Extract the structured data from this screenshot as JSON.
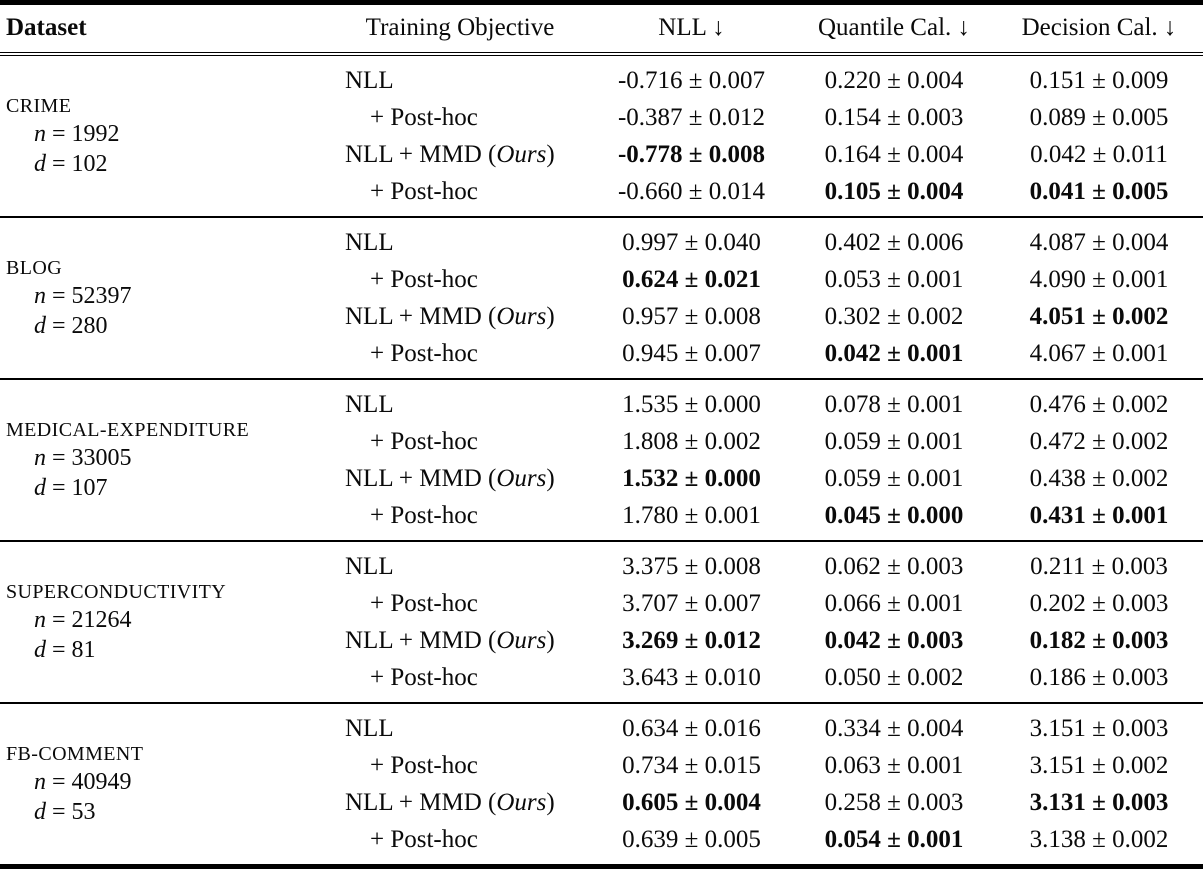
{
  "table": {
    "columns": [
      "Dataset",
      "Training Objective",
      "NLL ↓",
      "Quantile Cal. ↓",
      "Decision Cal. ↓"
    ],
    "groups": [
      {
        "name": "CRIME",
        "n_var": "n",
        "n_val": "= 1992",
        "d_var": "d",
        "d_val": "= 102",
        "rows": [
          {
            "obj_pre": "NLL",
            "obj_em": "",
            "obj_post": "",
            "indent": false,
            "nll": "-0.716 ± 0.007",
            "nll_bold": false,
            "qcal": "0.220 ± 0.004",
            "qcal_bold": false,
            "dcal": "0.151 ± 0.009",
            "dcal_bold": false
          },
          {
            "obj_pre": "+ Post-hoc",
            "obj_em": "",
            "obj_post": "",
            "indent": true,
            "nll": "-0.387 ± 0.012",
            "nll_bold": false,
            "qcal": "0.154 ± 0.003",
            "qcal_bold": false,
            "dcal": "0.089 ± 0.005",
            "dcal_bold": false
          },
          {
            "obj_pre": "NLL + MMD (",
            "obj_em": "Ours",
            "obj_post": ")",
            "indent": false,
            "nll": "-0.778 ± 0.008",
            "nll_bold": true,
            "qcal": "0.164 ± 0.004",
            "qcal_bold": false,
            "dcal": "0.042 ± 0.011",
            "dcal_bold": false
          },
          {
            "obj_pre": "+ Post-hoc",
            "obj_em": "",
            "obj_post": "",
            "indent": true,
            "nll": "-0.660 ± 0.014",
            "nll_bold": false,
            "qcal": "0.105 ± 0.004",
            "qcal_bold": true,
            "dcal": "0.041 ± 0.005",
            "dcal_bold": true
          }
        ]
      },
      {
        "name": "BLOG",
        "n_var": "n",
        "n_val": "= 52397",
        "d_var": "d",
        "d_val": "= 280",
        "rows": [
          {
            "obj_pre": "NLL",
            "obj_em": "",
            "obj_post": "",
            "indent": false,
            "nll": "0.997 ± 0.040",
            "nll_bold": false,
            "qcal": "0.402 ± 0.006",
            "qcal_bold": false,
            "dcal": "4.087 ± 0.004",
            "dcal_bold": false
          },
          {
            "obj_pre": "+ Post-hoc",
            "obj_em": "",
            "obj_post": "",
            "indent": true,
            "nll": "0.624 ± 0.021",
            "nll_bold": true,
            "qcal": "0.053 ± 0.001",
            "qcal_bold": false,
            "dcal": "4.090 ± 0.001",
            "dcal_bold": false
          },
          {
            "obj_pre": "NLL + MMD (",
            "obj_em": "Ours",
            "obj_post": ")",
            "indent": false,
            "nll": "0.957 ± 0.008",
            "nll_bold": false,
            "qcal": "0.302 ± 0.002",
            "qcal_bold": false,
            "dcal": "4.051 ± 0.002",
            "dcal_bold": true
          },
          {
            "obj_pre": "+ Post-hoc",
            "obj_em": "",
            "obj_post": "",
            "indent": true,
            "nll": "0.945 ± 0.007",
            "nll_bold": false,
            "qcal": "0.042 ± 0.001",
            "qcal_bold": true,
            "dcal": "4.067 ± 0.001",
            "dcal_bold": false
          }
        ]
      },
      {
        "name": "MEDICAL-EXPENDITURE",
        "n_var": "n",
        "n_val": "= 33005",
        "d_var": "d",
        "d_val": "= 107",
        "rows": [
          {
            "obj_pre": "NLL",
            "obj_em": "",
            "obj_post": "",
            "indent": false,
            "nll": "1.535 ± 0.000",
            "nll_bold": false,
            "qcal": "0.078 ± 0.001",
            "qcal_bold": false,
            "dcal": "0.476 ± 0.002",
            "dcal_bold": false
          },
          {
            "obj_pre": "+ Post-hoc",
            "obj_em": "",
            "obj_post": "",
            "indent": true,
            "nll": "1.808 ± 0.002",
            "nll_bold": false,
            "qcal": "0.059 ± 0.001",
            "qcal_bold": false,
            "dcal": "0.472 ± 0.002",
            "dcal_bold": false
          },
          {
            "obj_pre": "NLL + MMD (",
            "obj_em": "Ours",
            "obj_post": ")",
            "indent": false,
            "nll": "1.532 ± 0.000",
            "nll_bold": true,
            "qcal": "0.059 ± 0.001",
            "qcal_bold": false,
            "dcal": "0.438 ± 0.002",
            "dcal_bold": false
          },
          {
            "obj_pre": "+ Post-hoc",
            "obj_em": "",
            "obj_post": "",
            "indent": true,
            "nll": "1.780 ± 0.001",
            "nll_bold": false,
            "qcal": "0.045 ± 0.000",
            "qcal_bold": true,
            "dcal": "0.431 ± 0.001",
            "dcal_bold": true
          }
        ]
      },
      {
        "name": "SUPERCONDUCTIVITY",
        "n_var": "n",
        "n_val": "= 21264",
        "d_var": "d",
        "d_val": "= 81",
        "rows": [
          {
            "obj_pre": "NLL",
            "obj_em": "",
            "obj_post": "",
            "indent": false,
            "nll": "3.375 ± 0.008",
            "nll_bold": false,
            "qcal": "0.062 ± 0.003",
            "qcal_bold": false,
            "dcal": "0.211 ± 0.003",
            "dcal_bold": false
          },
          {
            "obj_pre": "+ Post-hoc",
            "obj_em": "",
            "obj_post": "",
            "indent": true,
            "nll": "3.707 ± 0.007",
            "nll_bold": false,
            "qcal": "0.066 ± 0.001",
            "qcal_bold": false,
            "dcal": "0.202 ± 0.003",
            "dcal_bold": false
          },
          {
            "obj_pre": "NLL + MMD (",
            "obj_em": "Ours",
            "obj_post": ")",
            "indent": false,
            "nll": "3.269 ± 0.012",
            "nll_bold": true,
            "qcal": "0.042 ± 0.003",
            "qcal_bold": true,
            "dcal": "0.182 ± 0.003",
            "dcal_bold": true
          },
          {
            "obj_pre": "+ Post-hoc",
            "obj_em": "",
            "obj_post": "",
            "indent": true,
            "nll": "3.643 ± 0.010",
            "nll_bold": false,
            "qcal": "0.050 ± 0.002",
            "qcal_bold": false,
            "dcal": "0.186 ± 0.003",
            "dcal_bold": false
          }
        ]
      },
      {
        "name": "FB-COMMENT",
        "n_var": "n",
        "n_val": "= 40949",
        "d_var": "d",
        "d_val": "= 53",
        "rows": [
          {
            "obj_pre": "NLL",
            "obj_em": "",
            "obj_post": "",
            "indent": false,
            "nll": "0.634 ± 0.016",
            "nll_bold": false,
            "qcal": "0.334 ± 0.004",
            "qcal_bold": false,
            "dcal": "3.151 ± 0.003",
            "dcal_bold": false
          },
          {
            "obj_pre": "+ Post-hoc",
            "obj_em": "",
            "obj_post": "",
            "indent": true,
            "nll": "0.734 ± 0.015",
            "nll_bold": false,
            "qcal": "0.063 ± 0.001",
            "qcal_bold": false,
            "dcal": "3.151 ± 0.002",
            "dcal_bold": false
          },
          {
            "obj_pre": "NLL + MMD (",
            "obj_em": "Ours",
            "obj_post": ")",
            "indent": false,
            "nll": "0.605 ± 0.004",
            "nll_bold": true,
            "qcal": "0.258 ± 0.003",
            "qcal_bold": false,
            "dcal": "3.131 ± 0.003",
            "dcal_bold": true
          },
          {
            "obj_pre": "+ Post-hoc",
            "obj_em": "",
            "obj_post": "",
            "indent": true,
            "nll": "0.639 ± 0.005",
            "nll_bold": false,
            "qcal": "0.054 ± 0.001",
            "qcal_bold": true,
            "dcal": "3.138 ± 0.002",
            "dcal_bold": false
          }
        ]
      }
    ]
  }
}
